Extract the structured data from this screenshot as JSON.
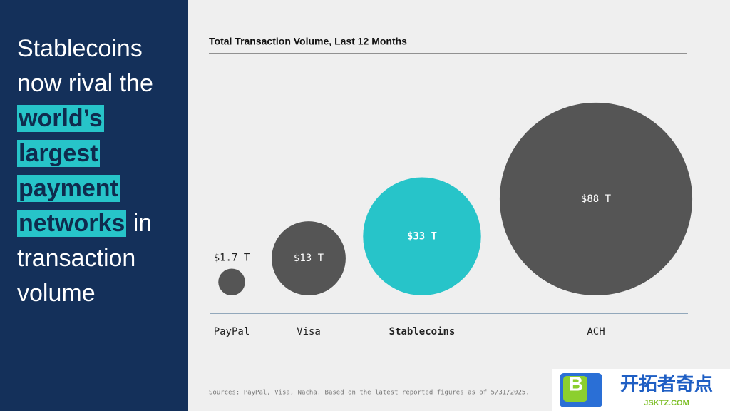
{
  "headline": {
    "before": "Stablecoins now rival the",
    "highlight": "world’s largest payment networks",
    "after": "in transaction volume"
  },
  "chart_data": {
    "type": "bubble",
    "title": "Total Transaction Volume, Last 12 Months",
    "categories": [
      "PayPal",
      "Visa",
      "Stablecoins",
      "ACH"
    ],
    "values": [
      1.7,
      13,
      33,
      88
    ],
    "value_labels": [
      "$1.7 T",
      "$13 T",
      "$33 T",
      "$88 T"
    ],
    "colors": [
      "#555555",
      "#555555",
      "#27c4c9",
      "#555555"
    ],
    "highlight_index": 2,
    "source": "Sources: PayPal, Visa, Nacha. Based on the latest reported figures as of 5/31/2025."
  },
  "watermark": {
    "name": "开拓者奇点",
    "site": "JSKTZ.COM"
  }
}
